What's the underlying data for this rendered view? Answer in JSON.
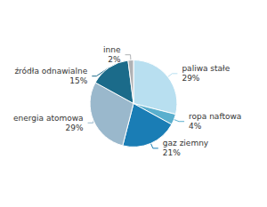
{
  "chart_data": {
    "type": "pie",
    "categories": [
      "paliwa stałe",
      "ropa naftowa",
      "gaz ziemny",
      "energia atomowa",
      "źródła odnawialne",
      "inne"
    ],
    "values": [
      29,
      4,
      21,
      29,
      15,
      2
    ],
    "value_labels": [
      "29%",
      "4%",
      "21%",
      "29%",
      "15%",
      "2%"
    ],
    "colors": [
      "#b8dff0",
      "#5aafce",
      "#1a7db5",
      "#9ab8cc",
      "#1b6b8a",
      "#b0b2b5"
    ],
    "data_labels": true
  }
}
